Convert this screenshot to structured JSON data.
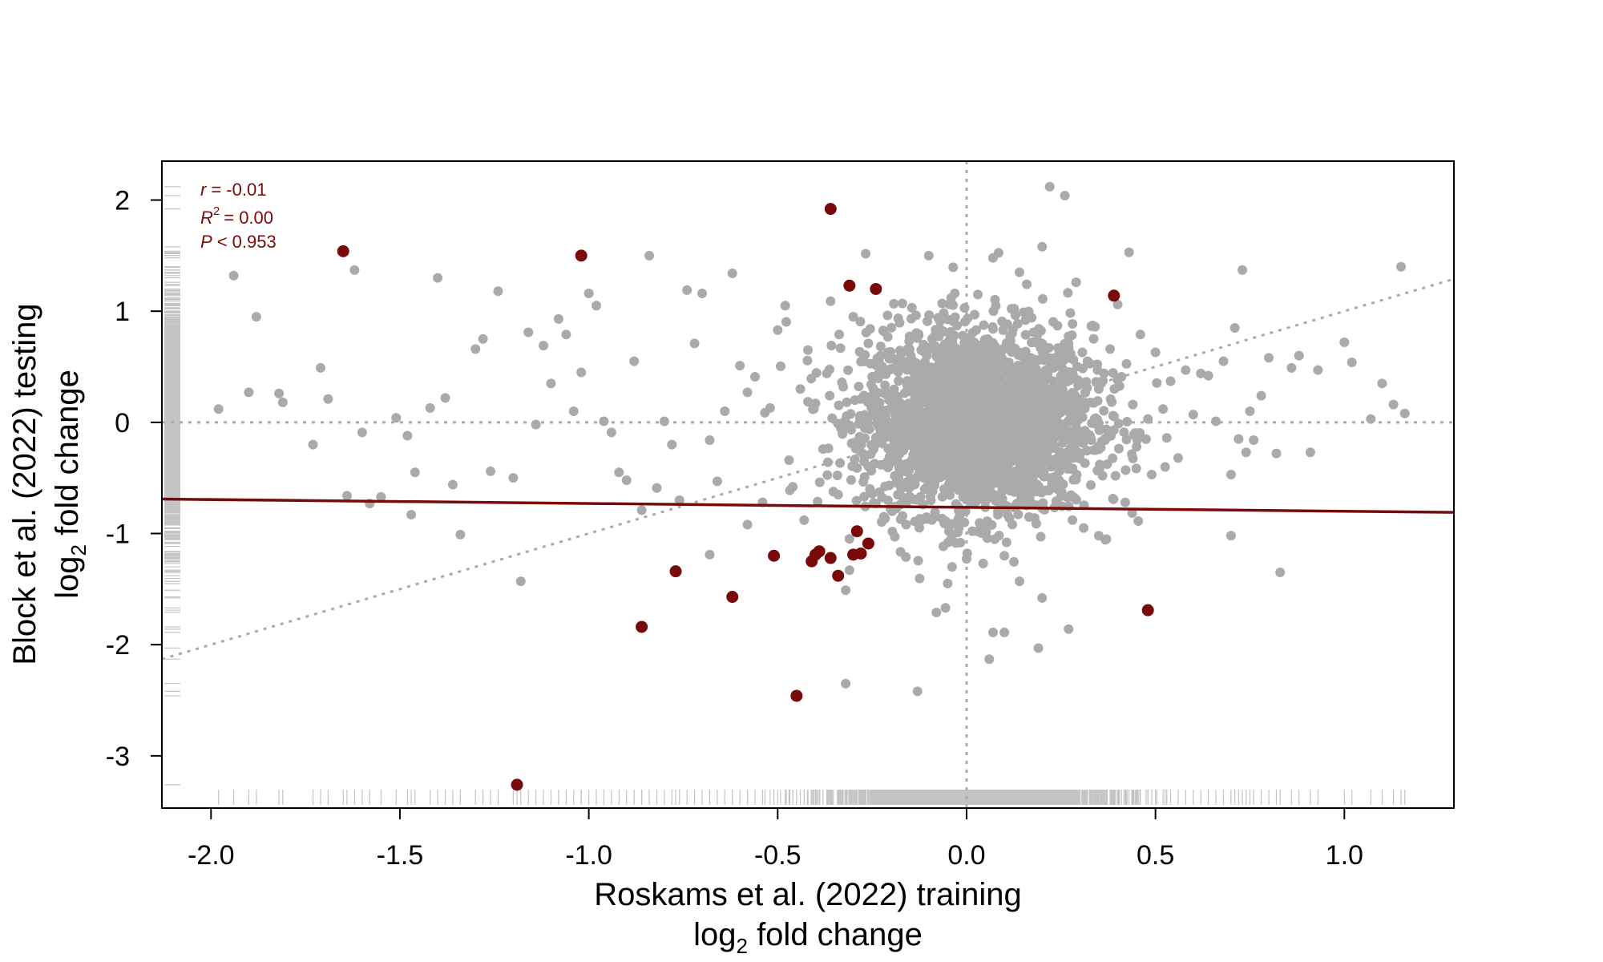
{
  "chart_data": {
    "type": "scatter",
    "title": "",
    "xlabel": "Roskams et al. (2022) training",
    "xlabel_line2": [
      "log",
      "2",
      " fold change"
    ],
    "ylabel": "Block et al. (2022) testing",
    "ylabel_line2": [
      "log",
      "2",
      " fold change"
    ],
    "xlim": [
      -2.13,
      1.29
    ],
    "ylim": [
      -3.47,
      2.35
    ],
    "xticks": [
      -2.0,
      -1.5,
      -1.0,
      -0.5,
      0.0,
      0.5,
      1.0
    ],
    "xtick_labels": [
      "-2.0",
      "-1.5",
      "-1.0",
      "-0.5",
      "0.0",
      "0.5",
      "1.0"
    ],
    "yticks": [
      -3,
      -2,
      -1,
      0,
      1,
      2
    ],
    "ytick_labels": [
      "-3",
      "-2",
      "-1",
      "0",
      "1",
      "2"
    ],
    "grid": false,
    "reference_lines": {
      "x0": true,
      "y0": true,
      "identity": true
    },
    "stats": {
      "r_label": "r",
      "r_value": "= -0.01",
      "r2_label": "R",
      "r2_sup": "2",
      "r2_value": "= 0.00",
      "p_label": "P",
      "p_value": "< 0.953"
    },
    "fit_line": {
      "x": [
        -2.13,
        1.29
      ],
      "y": [
        -0.69,
        -0.81
      ]
    },
    "colors": {
      "background_points": "#aaaaaa",
      "highlight_points": "#7a0a0a",
      "fit_line": "#7a0a0a",
      "reference_lines": "#aaaaaa",
      "rug": "#c4c4c4"
    },
    "series": [
      {
        "name": "",
        "role": "highlighted",
        "points": [
          [
            -1.65,
            1.54
          ],
          [
            -1.02,
            1.5
          ],
          [
            -0.36,
            1.92
          ],
          [
            -0.31,
            1.23
          ],
          [
            -0.24,
            1.2
          ],
          [
            0.39,
            1.14
          ],
          [
            -0.77,
            -1.34
          ],
          [
            -0.86,
            -1.84
          ],
          [
            -0.62,
            -1.57
          ],
          [
            -0.51,
            -1.2
          ],
          [
            -0.41,
            -1.25
          ],
          [
            -0.4,
            -1.19
          ],
          [
            -0.39,
            -1.16
          ],
          [
            -0.36,
            -1.22
          ],
          [
            -0.34,
            -1.38
          ],
          [
            -0.3,
            -1.19
          ],
          [
            -0.29,
            -0.98
          ],
          [
            -0.28,
            -1.18
          ],
          [
            -0.26,
            -1.09
          ],
          [
            -0.45,
            -2.46
          ],
          [
            -1.19,
            -3.26
          ],
          [
            0.48,
            -1.69
          ]
        ]
      },
      {
        "name": "",
        "role": "background",
        "points": [
          [
            -1.98,
            0.12
          ],
          [
            -1.94,
            1.32
          ],
          [
            -1.9,
            0.27
          ],
          [
            -1.88,
            0.95
          ],
          [
            -1.82,
            0.26
          ],
          [
            -1.81,
            0.18
          ],
          [
            -1.73,
            -0.2
          ],
          [
            -1.71,
            0.49
          ],
          [
            -1.69,
            0.21
          ],
          [
            -1.64,
            -0.66
          ],
          [
            -1.62,
            1.37
          ],
          [
            -1.6,
            -0.09
          ],
          [
            -1.58,
            -0.73
          ],
          [
            -1.55,
            -0.67
          ],
          [
            -1.51,
            0.04
          ],
          [
            -1.48,
            -0.12
          ],
          [
            -1.47,
            -0.83
          ],
          [
            -1.46,
            -0.45
          ],
          [
            -1.42,
            0.13
          ],
          [
            -1.4,
            1.3
          ],
          [
            -1.38,
            0.22
          ],
          [
            -1.36,
            -0.56
          ],
          [
            -1.34,
            -1.01
          ],
          [
            -1.3,
            0.66
          ],
          [
            -1.28,
            0.75
          ],
          [
            -1.26,
            -0.44
          ],
          [
            -1.24,
            1.18
          ],
          [
            -1.2,
            -0.5
          ],
          [
            -1.18,
            -1.43
          ],
          [
            -1.16,
            0.81
          ],
          [
            -1.14,
            -0.02
          ],
          [
            -1.12,
            0.69
          ],
          [
            -1.1,
            0.35
          ],
          [
            -1.08,
            0.93
          ],
          [
            -1.06,
            0.79
          ],
          [
            -1.04,
            0.1
          ],
          [
            -1.02,
            0.45
          ],
          [
            -1.0,
            1.16
          ],
          [
            -0.98,
            1.05
          ],
          [
            -0.96,
            0.01
          ],
          [
            -0.94,
            -0.09
          ],
          [
            -0.92,
            -0.45
          ],
          [
            -0.9,
            -0.52
          ],
          [
            -0.88,
            0.55
          ],
          [
            -0.86,
            -0.79
          ],
          [
            -0.84,
            1.5
          ],
          [
            -0.82,
            -0.59
          ],
          [
            -0.8,
            0.01
          ],
          [
            -0.78,
            -0.2
          ],
          [
            -0.76,
            -0.7
          ],
          [
            -0.74,
            1.19
          ],
          [
            -0.72,
            0.71
          ],
          [
            -0.7,
            1.16
          ],
          [
            -0.68,
            -0.16
          ],
          [
            -0.66,
            -0.53
          ],
          [
            -0.64,
            0.1
          ],
          [
            -0.62,
            1.34
          ],
          [
            -0.6,
            0.51
          ],
          [
            -0.58,
            0.27
          ],
          [
            -0.56,
            0.41
          ],
          [
            -0.54,
            -0.72
          ],
          [
            -0.52,
            0.13
          ],
          [
            -0.5,
            0.83
          ],
          [
            -0.48,
            1.05
          ],
          [
            -0.47,
            -0.34
          ],
          [
            -0.46,
            -0.58
          ],
          [
            -0.44,
            0.3
          ],
          [
            -0.43,
            -0.88
          ],
          [
            -0.42,
            0.65
          ],
          [
            -0.4,
            0.17
          ],
          [
            -0.38,
            -0.24
          ],
          [
            -0.37,
            0.44
          ],
          [
            -0.36,
            1.09
          ],
          [
            -0.34,
            -0.65
          ],
          [
            -0.33,
            0.36
          ],
          [
            -0.32,
            -1.51
          ],
          [
            -0.3,
            0.95
          ],
          [
            -0.29,
            -0.41
          ],
          [
            -0.28,
            0.21
          ],
          [
            -0.27,
            -0.31
          ],
          [
            -0.26,
            0.71
          ],
          [
            -0.25,
            0.41
          ],
          [
            -0.24,
            -0.73
          ],
          [
            -0.22,
            0.82
          ],
          [
            -0.21,
            -0.11
          ],
          [
            -0.2,
            0.48
          ],
          [
            -0.19,
            0.08
          ],
          [
            -0.18,
            -0.5
          ],
          [
            -0.17,
            1.07
          ],
          [
            -0.16,
            -0.92
          ],
          [
            -0.15,
            0.28
          ],
          [
            -0.14,
            -0.33
          ],
          [
            -0.13,
            -2.42
          ],
          [
            -0.12,
            0.65
          ],
          [
            -0.11,
            -0.04
          ],
          [
            -0.1,
            1.5
          ],
          [
            -0.09,
            -0.62
          ],
          [
            -0.08,
            0.35
          ],
          [
            -0.07,
            0.92
          ],
          [
            -0.06,
            -0.26
          ],
          [
            -0.05,
            0.17
          ],
          [
            -0.04,
            -1.04
          ],
          [
            -0.03,
            0.52
          ],
          [
            -0.02,
            -0.14
          ],
          [
            -0.01,
            0.78
          ],
          [
            0.01,
            0.06
          ],
          [
            0.02,
            -0.44
          ],
          [
            0.03,
            1.15
          ],
          [
            0.04,
            0.33
          ],
          [
            0.05,
            -0.71
          ],
          [
            0.06,
            0.44
          ],
          [
            0.07,
            1.48
          ],
          [
            0.08,
            -0.21
          ],
          [
            0.09,
            0.15
          ],
          [
            0.1,
            -1.2
          ],
          [
            0.11,
            0.67
          ],
          [
            0.12,
            -0.35
          ],
          [
            0.13,
            0.24
          ],
          [
            0.14,
            1.35
          ],
          [
            0.15,
            -0.55
          ],
          [
            0.16,
            0.02
          ],
          [
            0.17,
            0.58
          ],
          [
            0.18,
            -0.86
          ],
          [
            0.19,
            0.38
          ],
          [
            0.2,
            1.58
          ],
          [
            0.21,
            -0.1
          ],
          [
            0.22,
            2.12
          ],
          [
            0.23,
            0.49
          ],
          [
            0.24,
            -0.6
          ],
          [
            0.25,
            0.09
          ],
          [
            0.26,
            2.04
          ],
          [
            0.27,
            0.71
          ],
          [
            0.28,
            -0.32
          ],
          [
            0.29,
            1.26
          ],
          [
            0.3,
            0.2
          ],
          [
            0.31,
            -0.95
          ],
          [
            0.32,
            0.55
          ],
          [
            0.33,
            -0.16
          ],
          [
            0.34,
            0.86
          ],
          [
            0.35,
            0.3
          ],
          [
            0.36,
            -0.48
          ],
          [
            0.38,
            0.66
          ],
          [
            0.39,
            -0.07
          ],
          [
            0.4,
            1.06
          ],
          [
            0.41,
            0.41
          ],
          [
            0.42,
            -0.72
          ],
          [
            0.43,
            1.53
          ],
          [
            0.44,
            0.16
          ],
          [
            0.45,
            -0.22
          ],
          [
            0.46,
            0.79
          ],
          [
            0.48,
            0.03
          ],
          [
            0.49,
            -0.47
          ],
          [
            0.5,
            0.63
          ],
          [
            0.52,
            0.12
          ],
          [
            0.53,
            -0.14
          ],
          [
            0.54,
            0.37
          ],
          [
            0.56,
            -0.32
          ],
          [
            0.58,
            0.47
          ],
          [
            0.6,
            0.07
          ],
          [
            0.62,
            0.44
          ],
          [
            0.64,
            0.42
          ],
          [
            0.66,
            0.01
          ],
          [
            0.68,
            0.55
          ],
          [
            0.7,
            -0.47
          ],
          [
            0.7,
            -1.02
          ],
          [
            0.71,
            0.85
          ],
          [
            0.72,
            -0.15
          ],
          [
            0.73,
            1.37
          ],
          [
            0.74,
            -0.27
          ],
          [
            0.75,
            0.1
          ],
          [
            0.76,
            -0.16
          ],
          [
            0.78,
            0.24
          ],
          [
            0.8,
            0.58
          ],
          [
            0.82,
            -0.28
          ],
          [
            0.83,
            -1.35
          ],
          [
            0.86,
            0.49
          ],
          [
            0.88,
            0.6
          ],
          [
            0.91,
            -0.27
          ],
          [
            0.93,
            0.47
          ],
          [
            1.0,
            0.72
          ],
          [
            1.02,
            0.54
          ],
          [
            1.07,
            0.03
          ],
          [
            1.1,
            0.35
          ],
          [
            1.13,
            0.16
          ],
          [
            1.15,
            1.4
          ],
          [
            1.16,
            0.08
          ],
          [
            -0.32,
            -2.35
          ],
          [
            -0.08,
            -1.71
          ],
          [
            0.06,
            -2.13
          ],
          [
            0.07,
            -1.89
          ],
          [
            0.1,
            -1.89
          ],
          [
            0.19,
            -2.03
          ],
          [
            0.27,
            -1.86
          ],
          [
            -0.31,
            -1.33
          ],
          [
            -0.19,
            -1.03
          ],
          [
            -0.58,
            -0.92
          ],
          [
            -0.68,
            -1.19
          ],
          [
            0.14,
            -1.43
          ],
          [
            0.2,
            -1.58
          ],
          [
            -0.05,
            -1.45
          ],
          [
            0.35,
            -1.02
          ]
        ]
      }
    ]
  }
}
